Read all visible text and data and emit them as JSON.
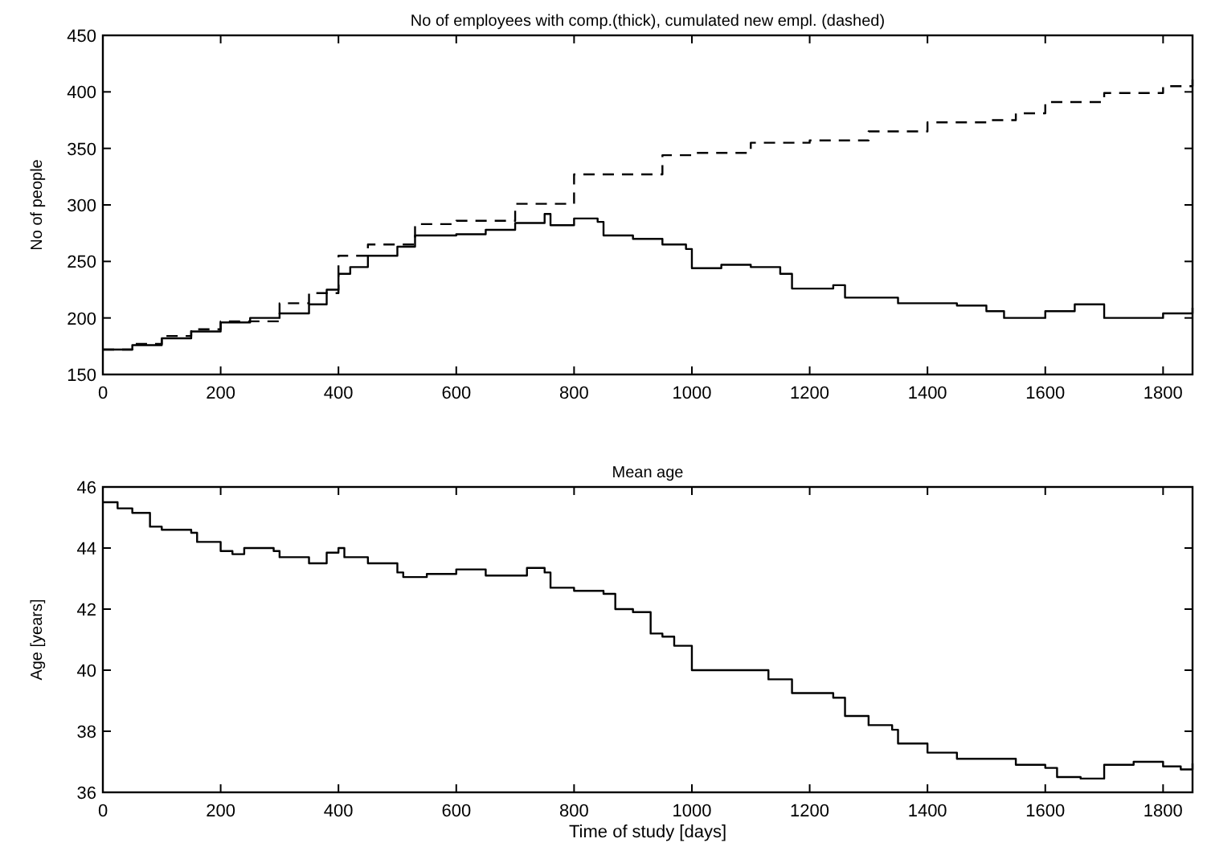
{
  "chart_data": [
    {
      "type": "step",
      "title": "No of employees with comp.(thick), cumulated new empl. (dashed)",
      "ylabel": "No of people",
      "xlim": [
        0,
        1850
      ],
      "xticks": [
        0,
        200,
        400,
        600,
        800,
        1000,
        1200,
        1400,
        1600,
        1800
      ],
      "ylim": [
        150,
        450
      ],
      "yticks": [
        150,
        200,
        250,
        300,
        350,
        400,
        450
      ],
      "grid": false,
      "series": [
        {
          "color": "#000000",
          "line_style": "solid",
          "x": [
            0,
            50,
            100,
            150,
            200,
            250,
            300,
            350,
            380,
            400,
            420,
            450,
            500,
            530,
            600,
            650,
            700,
            750,
            760,
            800,
            840,
            850,
            900,
            950,
            990,
            1000,
            1050,
            1100,
            1150,
            1170,
            1240,
            1260,
            1350,
            1450,
            1500,
            1530,
            1600,
            1650,
            1700,
            1800,
            1850
          ],
          "values": [
            172,
            176,
            182,
            188,
            196,
            200,
            204,
            212,
            225,
            239,
            245,
            255,
            263,
            273,
            274,
            278,
            284,
            292,
            282,
            288,
            285,
            273,
            270,
            265,
            261,
            244,
            247,
            245,
            239,
            226,
            229,
            218,
            213,
            211,
            206,
            200,
            206,
            212,
            200,
            204,
            209
          ]
        },
        {
          "color": "#000000",
          "line_style": "dashed",
          "x": [
            0,
            50,
            100,
            150,
            200,
            300,
            350,
            400,
            450,
            530,
            600,
            700,
            800,
            950,
            1000,
            1100,
            1200,
            1300,
            1400,
            1500,
            1550,
            1600,
            1700,
            1800,
            1850
          ],
          "values": [
            172,
            177,
            184,
            190,
            197,
            213,
            222,
            255,
            265,
            283,
            286,
            301,
            327,
            344,
            346,
            355,
            357,
            365,
            373,
            375,
            381,
            391,
            399,
            405,
            411
          ]
        }
      ]
    },
    {
      "type": "step",
      "title": "Mean age",
      "xlabel": "Time of study [days]",
      "ylabel": "Age [years]",
      "xlim": [
        0,
        1850
      ],
      "xticks": [
        0,
        200,
        400,
        600,
        800,
        1000,
        1200,
        1400,
        1600,
        1800
      ],
      "ylim": [
        36,
        46
      ],
      "yticks": [
        36,
        38,
        40,
        42,
        44,
        46
      ],
      "grid": false,
      "series": [
        {
          "color": "#000000",
          "line_style": "solid",
          "x": [
            0,
            25,
            50,
            80,
            100,
            150,
            160,
            200,
            220,
            240,
            290,
            300,
            350,
            380,
            400,
            410,
            450,
            480,
            500,
            510,
            550,
            600,
            650,
            700,
            720,
            750,
            760,
            800,
            850,
            870,
            900,
            930,
            950,
            970,
            1000,
            1100,
            1130,
            1170,
            1240,
            1260,
            1300,
            1340,
            1350,
            1400,
            1450,
            1500,
            1550,
            1600,
            1620,
            1660,
            1700,
            1750,
            1800,
            1830,
            1850
          ],
          "values": [
            45.5,
            45.3,
            45.15,
            44.7,
            44.6,
            44.5,
            44.2,
            43.9,
            43.8,
            44.0,
            43.9,
            43.7,
            43.5,
            43.85,
            44.0,
            43.7,
            43.5,
            43.5,
            43.2,
            43.05,
            43.15,
            43.3,
            43.1,
            43.1,
            43.35,
            43.2,
            42.7,
            42.6,
            42.5,
            42.0,
            41.9,
            41.2,
            41.1,
            40.8,
            40.0,
            40.0,
            39.7,
            39.25,
            39.1,
            38.5,
            38.2,
            38.05,
            37.6,
            37.3,
            37.1,
            37.1,
            36.9,
            36.8,
            36.5,
            36.45,
            36.9,
            37.0,
            36.85,
            36.75,
            36.95
          ]
        }
      ]
    }
  ]
}
